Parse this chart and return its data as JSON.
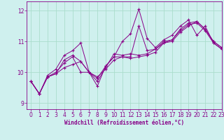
{
  "xlabel": "Windchill (Refroidissement éolien,°C)",
  "background_color": "#cff0ee",
  "grid_color": "#aaddcc",
  "line_color": "#880088",
  "xlim": [
    -0.5,
    23
  ],
  "ylim": [
    8.8,
    12.3
  ],
  "yticks": [
    9,
    10,
    11,
    12
  ],
  "xticks": [
    0,
    1,
    2,
    3,
    4,
    5,
    6,
    7,
    8,
    9,
    10,
    11,
    12,
    13,
    14,
    15,
    16,
    17,
    18,
    19,
    20,
    21,
    22,
    23
  ],
  "series": [
    [
      9.7,
      9.3,
      9.85,
      9.95,
      10.15,
      10.25,
      10.35,
      10.0,
      9.85,
      10.1,
      10.4,
      10.5,
      10.45,
      10.5,
      10.55,
      10.65,
      10.95,
      11.0,
      11.3,
      11.5,
      11.65,
      11.4,
      11.0,
      10.8
    ],
    [
      9.7,
      9.3,
      9.85,
      10.0,
      10.3,
      10.5,
      10.0,
      10.0,
      9.8,
      10.2,
      10.5,
      10.5,
      10.5,
      11.5,
      10.7,
      10.75,
      10.95,
      11.05,
      11.35,
      11.55,
      11.6,
      11.35,
      10.95,
      10.75
    ],
    [
      9.7,
      9.3,
      9.9,
      10.1,
      10.55,
      10.7,
      10.95,
      10.0,
      9.55,
      10.2,
      10.5,
      11.0,
      11.25,
      12.05,
      11.1,
      10.8,
      11.05,
      11.2,
      11.5,
      11.7,
      11.2,
      11.5,
      10.95,
      10.75
    ],
    [
      9.7,
      9.3,
      9.85,
      9.95,
      10.4,
      10.55,
      10.35,
      10.0,
      9.7,
      10.15,
      10.6,
      10.55,
      10.6,
      10.55,
      10.6,
      10.75,
      11.0,
      11.05,
      11.4,
      11.6,
      11.65,
      11.4,
      11.0,
      10.8
    ]
  ]
}
